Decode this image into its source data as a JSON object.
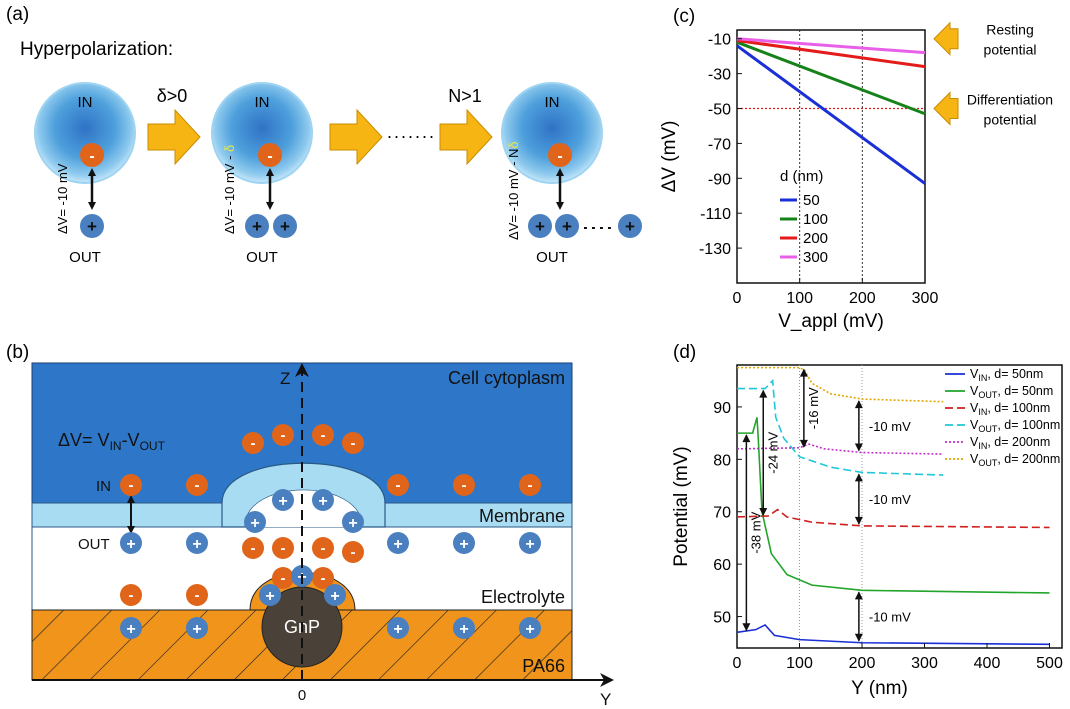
{
  "panels": {
    "a": "(a)",
    "b": "(b)",
    "c": "(c)",
    "d": "(d)"
  },
  "panel_a": {
    "title": "Hyperpolarization:",
    "in_label": "IN",
    "out_label": "OUT",
    "arrow1_label": "δ>0",
    "arrow3_label": "N>1",
    "cell1_dv": "ΔV= -10 mV",
    "cell2_dv": "ΔV= -10 mV - ",
    "cell2_delta": "δ",
    "cell3_dv": "ΔV= -10 mV - N",
    "cell3_delta": "δ",
    "plus": "+",
    "minus": "-",
    "ellipsis_dots": "......."
  },
  "panel_b": {
    "z_axis": "Z",
    "y_axis": "Y",
    "origin": "0",
    "cytoplasm": "Cell cytoplasm",
    "dv_eq": "ΔV= V",
    "dv_in_sub": "IN",
    "dv_minus": "-V",
    "dv_out_sub": "OUT",
    "in_label": "IN",
    "out_label": "OUT",
    "membrane": "Membrane",
    "electrolyte": "Electrolyte",
    "gnp": "GnP",
    "pa66": "PA66"
  },
  "colors": {
    "cytoplasm": "#2e77c8",
    "membrane": "#a8dcf2",
    "pa66": "#f0941c",
    "gnp": "#4a4238",
    "ion_neg": "#e0651a",
    "ion_pos": "#4a80c0",
    "arrow": "#f7b513"
  },
  "chart_data": [
    {
      "type": "line",
      "title": "",
      "xlabel": "V_appl (mV)",
      "ylabel": "ΔV (mV)",
      "xlim": [
        0,
        300
      ],
      "ylim": [
        -150,
        -5
      ],
      "xticks": [
        0,
        100,
        200,
        300
      ],
      "yticks": [
        -10,
        -30,
        -50,
        -70,
        -90,
        -110,
        -130
      ],
      "legend_title": "d (nm)",
      "legend_position": "center",
      "series": [
        {
          "name": "50",
          "color": "#1a2fd6",
          "x": [
            0,
            300
          ],
          "y": [
            -14,
            -93
          ]
        },
        {
          "name": "100",
          "color": "#15821a",
          "x": [
            0,
            300
          ],
          "y": [
            -12,
            -53
          ]
        },
        {
          "name": "200",
          "color": "#e31b1b",
          "x": [
            0,
            300
          ],
          "y": [
            -11,
            -26
          ]
        },
        {
          "name": "300",
          "color": "#e860e8",
          "x": [
            0,
            300
          ],
          "y": [
            -10,
            -18
          ]
        }
      ],
      "vlines": [
        100,
        200
      ],
      "hline": -50,
      "annotations": [
        {
          "text": [
            "Resting",
            "potential"
          ],
          "y": -10
        },
        {
          "text": [
            "Differentiation",
            "potential"
          ],
          "y": -50
        }
      ]
    },
    {
      "type": "line",
      "title": "",
      "xlabel": "Y (nm)",
      "ylabel": "Potential (mV)",
      "xlim": [
        0,
        520
      ],
      "ylim": [
        44,
        98
      ],
      "xticks": [
        0,
        100,
        200,
        300,
        400,
        500
      ],
      "yticks": [
        50,
        60,
        70,
        80,
        90
      ],
      "legend_position": "top-right",
      "series": [
        {
          "name": "V_IN, d= 50nm",
          "label_main": "V",
          "label_sub": "IN",
          "label_rest": ", d= 50nm",
          "color": "#1a2fd6",
          "dash": "",
          "x": [
            0,
            30,
            45,
            60,
            100,
            200,
            500
          ],
          "y": [
            47,
            47.5,
            48.4,
            46.4,
            45.6,
            45,
            44.7
          ]
        },
        {
          "name": "V_OUT, d= 50nm",
          "label_main": "V",
          "label_sub": "OUT",
          "label_rest": ", d= 50nm",
          "color": "#21a52a",
          "dash": "",
          "x": [
            0,
            25,
            32,
            34,
            40,
            55,
            80,
            120,
            200,
            500
          ],
          "y": [
            85,
            85,
            88,
            84,
            70,
            62,
            58,
            56,
            55,
            54.5
          ]
        },
        {
          "name": "V_IN, d= 100nm",
          "label_main": "V",
          "label_sub": "IN",
          "label_rest": ", d= 100nm",
          "color": "#cf1f1f",
          "dash": "8 4",
          "x": [
            0,
            50,
            65,
            80,
            120,
            200,
            500
          ],
          "y": [
            69,
            69.2,
            70.4,
            69,
            68,
            67.3,
            67
          ]
        },
        {
          "name": "V_OUT, d= 100nm",
          "label_main": "V",
          "label_sub": "OUT",
          "label_rest": ", d= 100nm",
          "color": "#1fc8d8",
          "dash": "8 4",
          "x": [
            0,
            45,
            57,
            62,
            75,
            100,
            150,
            200,
            330
          ],
          "y": [
            93.5,
            93.5,
            95,
            88,
            84,
            80.5,
            78.5,
            77.5,
            77
          ]
        },
        {
          "name": "V_IN, d= 200nm",
          "label_main": "V",
          "label_sub": "IN",
          "label_rest": ", d= 200nm",
          "color": "#c030c8",
          "dash": "2 2",
          "x": [
            0,
            100,
            115,
            140,
            200,
            330
          ],
          "y": [
            82,
            82.2,
            82.9,
            82,
            81.3,
            81
          ]
        },
        {
          "name": "V_OUT, d= 200nm",
          "label_main": "V",
          "label_sub": "OUT",
          "label_rest": ", d= 200nm",
          "color": "#e0a800",
          "dash": "2 2",
          "x": [
            0,
            100,
            108,
            120,
            150,
            200,
            330
          ],
          "y": [
            97.5,
            97.5,
            97,
            94.5,
            92.5,
            91.5,
            91
          ]
        }
      ],
      "vlines": [
        100,
        200
      ],
      "annotations": [
        {
          "text": "-38 mV",
          "x": 15,
          "y_from": 47,
          "y_to": 85
        },
        {
          "text": "-24 mV",
          "x": 42,
          "y_from": 69,
          "y_to": 93.5
        },
        {
          "text": "-16 mV",
          "x": 107,
          "y_from": 82,
          "y_to": 97.5
        },
        {
          "text": "-10 mV",
          "x": 195,
          "y_from": 81.3,
          "y_to": 91.5
        },
        {
          "text": "-10 mV",
          "x": 195,
          "y_from": 67.3,
          "y_to": 77.5
        },
        {
          "text": "-10 mV",
          "x": 195,
          "y_from": 45,
          "y_to": 55
        }
      ]
    }
  ]
}
